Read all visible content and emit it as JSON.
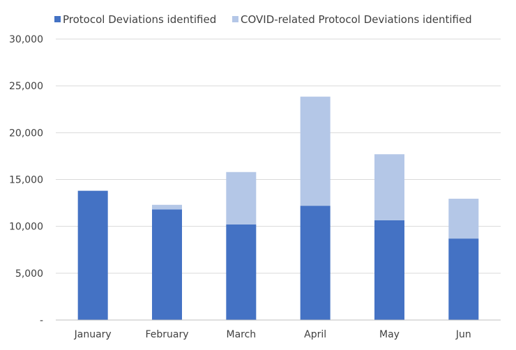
{
  "chart_data": {
    "type": "bar",
    "stacked": true,
    "title": "",
    "xlabel": "",
    "ylabel": "",
    "categories": [
      "January",
      "February",
      "March",
      "April",
      "May",
      "Jun"
    ],
    "series": [
      {
        "name": "Protocol Deviations identified",
        "color": "#4472c4",
        "values": [
          13800,
          11800,
          10200,
          12200,
          10650,
          8700
        ]
      },
      {
        "name": "COVID-related Protocol Deviations identified",
        "color": "#b4c7e7",
        "values": [
          0,
          500,
          5600,
          11650,
          7050,
          4250
        ]
      }
    ],
    "ylim": [
      0,
      30000
    ],
    "yticks": [
      0,
      5000,
      10000,
      15000,
      20000,
      25000,
      30000
    ],
    "ytick_labels": [
      "-",
      "5,000",
      "10,000",
      "15,000",
      "20,000",
      "25,000",
      "30,000"
    ],
    "grid": true,
    "legend_position": "top"
  }
}
